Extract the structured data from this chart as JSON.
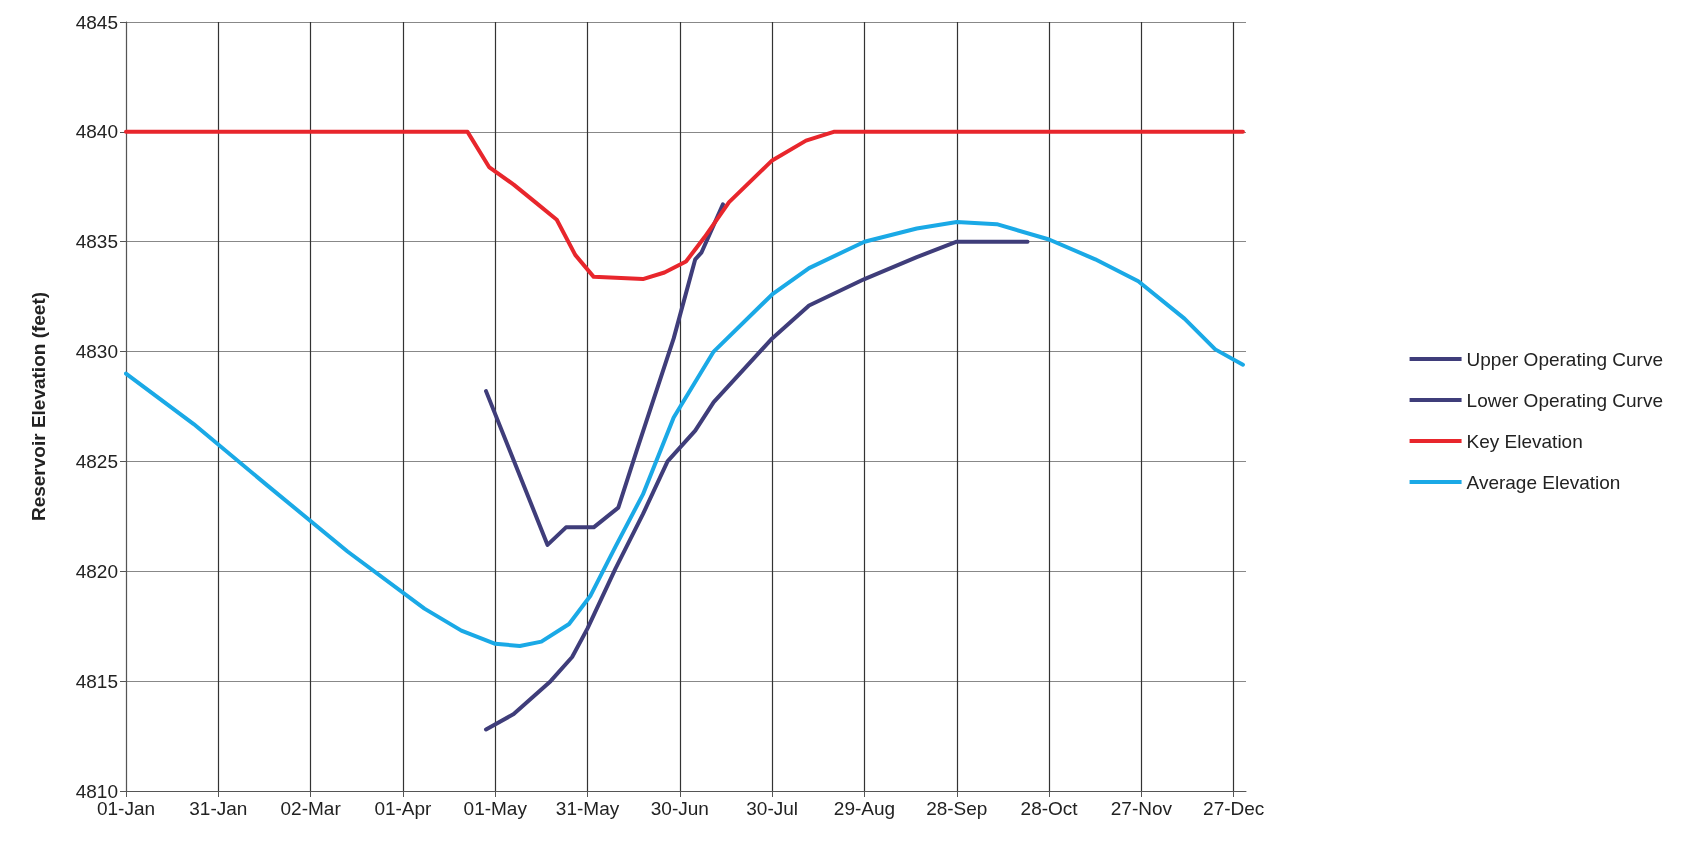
{
  "chart_data": {
    "type": "line",
    "ylabel": "Reservoir Elevation (feet)",
    "xlim": [
      "--01-01",
      "--12-31"
    ],
    "xticks": [
      {
        "value": "--01-01",
        "label": "01-Jan"
      },
      {
        "value": "--01-31",
        "label": "31-Jan"
      },
      {
        "value": "--03-02",
        "label": "02-Mar"
      },
      {
        "value": "--04-01",
        "label": "01-Apr"
      },
      {
        "value": "--05-01",
        "label": "01-May"
      },
      {
        "value": "--05-31",
        "label": "31-May"
      },
      {
        "value": "--06-30",
        "label": "30-Jun"
      },
      {
        "value": "--07-30",
        "label": "30-Jul"
      },
      {
        "value": "--08-29",
        "label": "29-Aug"
      },
      {
        "value": "--09-28",
        "label": "28-Sep"
      },
      {
        "value": "--10-28",
        "label": "28-Oct"
      },
      {
        "value": "--11-27",
        "label": "27-Nov"
      },
      {
        "value": "--12-27",
        "label": "27-Dec"
      }
    ],
    "ylim": [
      4810,
      4845
    ],
    "yticks": [
      4810,
      4815,
      4820,
      4825,
      4830,
      4835,
      4840,
      4845
    ],
    "grid": true,
    "legend": "right",
    "marker": "none",
    "line_style": "solid",
    "series": [
      {
        "name": "Upper Operating Curve",
        "color": "#3f3d7a",
        "x": [
          "--04-28",
          "--05-18",
          "--05-24",
          "--06-02",
          "--06-10",
          "--06-16",
          "--06-28",
          "--07-05",
          "--07-07",
          "--07-14"
        ],
        "values": [
          4828.2,
          4821.2,
          4822.0,
          4822.0,
          4822.9,
          4825.5,
          4830.6,
          4834.2,
          4834.5,
          4836.7
        ]
      },
      {
        "name": "Lower Operating Curve",
        "color": "#3f3d7a",
        "x": [
          "--04-28",
          "--05-07",
          "--05-19",
          "--05-26",
          "--05-31",
          "--06-09",
          "--06-18",
          "--06-26",
          "--07-05",
          "--07-11",
          "--07-30",
          "--08-11",
          "--08-29",
          "--09-15",
          "--09-28",
          "--10-21"
        ],
        "values": [
          4812.8,
          4813.5,
          4815.0,
          4816.1,
          4817.4,
          4820.1,
          4822.6,
          4825.0,
          4826.4,
          4827.7,
          4830.6,
          4832.1,
          4833.3,
          4834.3,
          4835.0,
          4835.0
        ]
      },
      {
        "name": "Key Elevation",
        "color": "#e8262c",
        "x": [
          "--01-01",
          "--04-22",
          "--04-29",
          "--05-07",
          "--05-14",
          "--05-21",
          "--05-27",
          "--06-02",
          "--06-18",
          "--06-25",
          "--07-02",
          "--07-08",
          "--07-16",
          "--07-30",
          "--08-10",
          "--08-19",
          "--12-30"
        ],
        "values": [
          4840,
          4840,
          4838.4,
          4837.6,
          4836.8,
          4836.0,
          4834.4,
          4833.4,
          4833.3,
          4833.6,
          4834.1,
          4835.2,
          4836.8,
          4838.7,
          4839.6,
          4840,
          4840
        ]
      },
      {
        "name": "Average Elevation",
        "color": "#1aa9e6",
        "x": [
          "--01-01",
          "--01-23",
          "--02-16",
          "--03-14",
          "--04-08",
          "--04-20",
          "--05-01",
          "--05-09",
          "--05-16",
          "--05-25",
          "--06-01",
          "--06-09",
          "--06-18",
          "--06-28",
          "--07-11",
          "--07-30",
          "--08-11",
          "--08-29",
          "--09-15",
          "--09-28",
          "--10-11",
          "--10-28",
          "--11-12",
          "--11-26",
          "--12-11",
          "--12-21",
          "--12-30"
        ],
        "values": [
          4829.0,
          4826.7,
          4823.9,
          4820.9,
          4818.3,
          4817.3,
          4816.7,
          4816.6,
          4816.8,
          4817.6,
          4818.9,
          4821.1,
          4823.5,
          4827.0,
          4830.0,
          4832.6,
          4833.8,
          4835.0,
          4835.6,
          4835.9,
          4835.8,
          4835.1,
          4834.2,
          4833.2,
          4831.5,
          4830.1,
          4829.4
        ]
      }
    ]
  }
}
